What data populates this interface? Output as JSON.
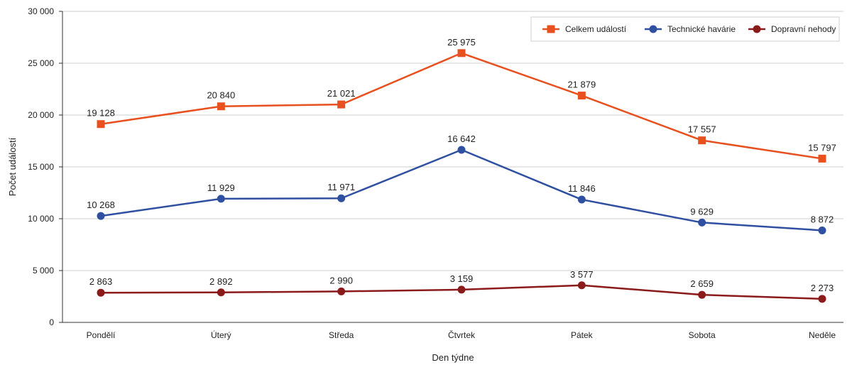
{
  "chart_data": {
    "type": "line",
    "xlabel": "Den týdne",
    "ylabel": "Počet událostí",
    "ylim": [
      0,
      30000
    ],
    "yticks": [
      0,
      5000,
      10000,
      15000,
      20000,
      25000,
      30000
    ],
    "ytick_labels": [
      "0",
      "5 000",
      "10 000",
      "15 000",
      "20 000",
      "25 000",
      "30 000"
    ],
    "categories": [
      "Pondělí",
      "Úterý",
      "Středa",
      "Čtvrtek",
      "Pátek",
      "Sobota",
      "Neděle"
    ],
    "grid": "horizontal",
    "legend_position": "top-right",
    "series": [
      {
        "name": "Celkem událostí",
        "color": "#e8501f",
        "marker": "square",
        "values": [
          19128,
          20840,
          21021,
          25975,
          21879,
          17557,
          15797
        ],
        "labels": [
          "19 128",
          "20 840",
          "21 021",
          "25 975",
          "21 879",
          "17 557",
          "15 797"
        ]
      },
      {
        "name": "Technické havárie",
        "color": "#2f4fa1",
        "marker": "circle",
        "values": [
          10268,
          11929,
          11971,
          16642,
          11846,
          9629,
          8872
        ],
        "labels": [
          "10 268",
          "11 929",
          "11 971",
          "16 642",
          "11 846",
          "9 629",
          "8 872"
        ]
      },
      {
        "name": "Dopravní nehody",
        "color": "#8b1a1a",
        "marker": "circle",
        "values": [
          2863,
          2892,
          2990,
          3159,
          3577,
          2659,
          2273
        ],
        "labels": [
          "2 863",
          "2 892",
          "2 990",
          "3 159",
          "3 577",
          "2 659",
          "2 273"
        ]
      }
    ]
  }
}
